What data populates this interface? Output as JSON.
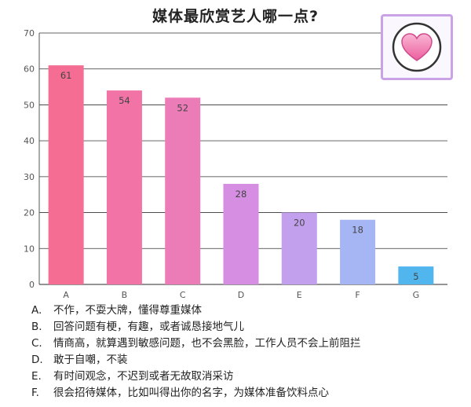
{
  "chart_data": {
    "type": "bar",
    "title": "媒体最欣赏艺人哪一点?",
    "categories": [
      "A",
      "B",
      "C",
      "D",
      "E",
      "F",
      "G"
    ],
    "values": [
      61,
      54,
      52,
      28,
      20,
      18,
      5
    ],
    "ylim": [
      0,
      70
    ],
    "yticks": [
      0,
      10,
      20,
      30,
      40,
      50,
      60,
      70
    ],
    "grid": true,
    "bar_colors": [
      "#f56d93",
      "#f273a6",
      "#ec7cb8",
      "#d58ee2",
      "#c3a0ee",
      "#a6b6f5",
      "#52b6ee"
    ]
  },
  "badge": {
    "icon": "heart-icon",
    "color": "#f06aa8"
  },
  "legend": [
    {
      "letter": "A.",
      "text": "不作，不耍大牌，懂得尊重媒体"
    },
    {
      "letter": "B.",
      "text": "回答问题有梗，有趣，或者诚恳接地气儿"
    },
    {
      "letter": "C.",
      "text": "情商高，就算遇到敏感问题，也不会黑脸，工作人员不会上前阻拦"
    },
    {
      "letter": "D.",
      "text": "敢于自嘲，不装"
    },
    {
      "letter": "E.",
      "text": "有时间观念，不迟到或者无故取消采访"
    },
    {
      "letter": "F.",
      "text": "很会招待媒体，比如叫得出你的名字，为媒体准备饮料点心"
    }
  ]
}
